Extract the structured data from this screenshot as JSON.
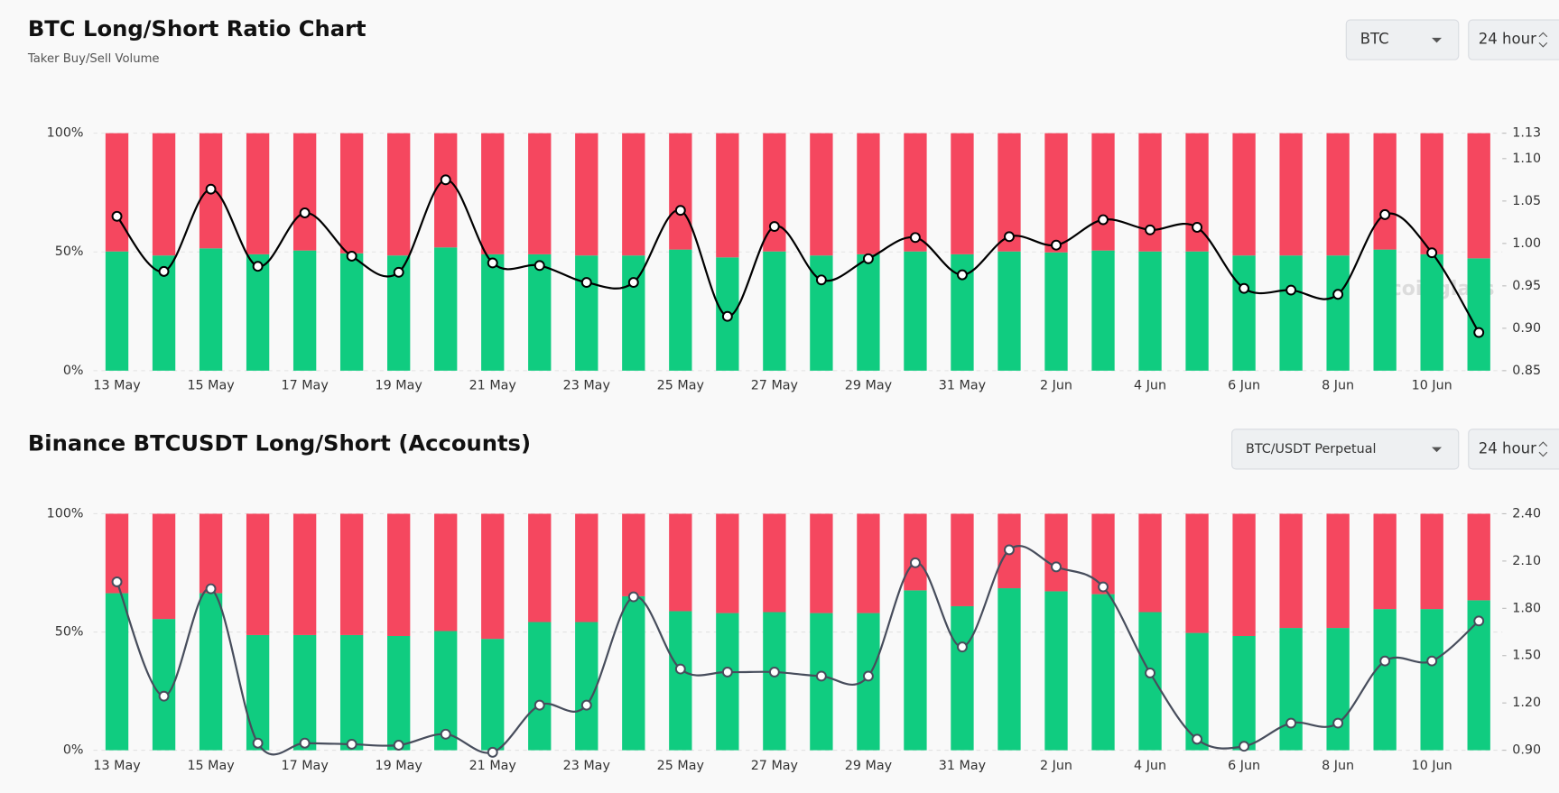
{
  "controls": [
    [
      "BTC",
      "24 hour"
    ],
    [
      "BTC/USDT Perpetual",
      "24 hour"
    ]
  ],
  "chart_data": [
    {
      "type": "bar",
      "stacked": true,
      "title": "BTC Long/Short Ratio Chart",
      "subtitle": "Taker Buy/Sell Volume",
      "watermark": "coinglass",
      "categories": [
        "13 May",
        null,
        "15 May",
        null,
        "17 May",
        null,
        "19 May",
        null,
        "21 May",
        null,
        "23 May",
        null,
        "25 May",
        null,
        "27 May",
        null,
        "29 May",
        null,
        "31 May",
        null,
        "2 Jun",
        null,
        "4 Jun",
        null,
        "6 Jun",
        null,
        "8 Jun",
        null,
        "10 Jun",
        null
      ],
      "series": [
        {
          "color": "#10cc80",
          "values": [
            50.2,
            48.5,
            51.5,
            49,
            50.6,
            49.4,
            48.5,
            51.9,
            49,
            49,
            48.5,
            48.5,
            51,
            47.7,
            50.2,
            48.5,
            49,
            50.2,
            49,
            50.2,
            49.8,
            50.6,
            50.2,
            50.2,
            48.5,
            48.5,
            48.5,
            51,
            49,
            47.3
          ]
        },
        {
          "color": "#f5475f",
          "values": [
            49.8,
            51.5,
            48.5,
            51,
            49.4,
            50.6,
            51.5,
            48.1,
            51,
            51,
            51.5,
            51.5,
            49,
            52.3,
            49.8,
            51.5,
            51,
            49.8,
            51,
            49.8,
            50.2,
            49.4,
            49.8,
            49.8,
            51.5,
            51.5,
            51.5,
            49,
            51,
            52.7
          ]
        },
        {
          "type": "line",
          "axis": "y2",
          "color": "#000000",
          "values": [
            1.032,
            0.967,
            1.064,
            0.973,
            1.036,
            0.985,
            0.966,
            1.075,
            0.977,
            0.974,
            0.954,
            0.954,
            1.039,
            0.914,
            1.02,
            0.957,
            0.982,
            1.007,
            0.963,
            1.008,
            0.998,
            1.028,
            1.016,
            1.019,
            0.947,
            0.945,
            0.94,
            1.034,
            0.989,
            0.895
          ]
        }
      ],
      "ylim": [
        0,
        100
      ],
      "yticks": [
        {
          "value": 0,
          "label": "0%"
        },
        {
          "value": 50,
          "label": "50%"
        },
        {
          "value": 100,
          "label": "100%"
        }
      ],
      "y2lim": [
        0.85,
        1.13
      ],
      "y2ticks": [
        0.85,
        {
          "value": 0.9,
          "label": "0.90"
        },
        0.95,
        {
          "value": 1,
          "label": "1.00"
        },
        1.05,
        {
          "value": 1.1,
          "label": "1.10"
        },
        1.13
      ],
      "grid": true
    },
    {
      "type": "bar",
      "stacked": true,
      "title": "Binance BTCUSDT Long/Short (Accounts)",
      "categories": [
        "13 May",
        null,
        "15 May",
        null,
        "17 May",
        null,
        "19 May",
        null,
        "21 May",
        null,
        "23 May",
        null,
        "25 May",
        null,
        "27 May",
        null,
        "29 May",
        null,
        "31 May",
        null,
        "2 Jun",
        null,
        "4 Jun",
        null,
        "6 Jun",
        null,
        "8 Jun",
        null,
        "10 Jun",
        null
      ],
      "series": [
        {
          "color": "#10cc80",
          "values": [
            66.4,
            55.5,
            66.4,
            48.7,
            48.7,
            48.7,
            48.3,
            50.4,
            47.1,
            54.2,
            54.2,
            65.1,
            58.8,
            58,
            58.4,
            58,
            58,
            67.6,
            60.9,
            68.5,
            67.2,
            66,
            58.4,
            49.6,
            48.3,
            51.7,
            51.7,
            59.7,
            59.7,
            63.4
          ]
        },
        {
          "color": "#f5475f",
          "values": [
            33.6,
            44.5,
            33.6,
            51.3,
            51.3,
            51.3,
            51.7,
            49.6,
            52.9,
            45.8,
            45.8,
            34.9,
            41.2,
            42,
            41.6,
            42,
            42,
            32.4,
            39.1,
            31.5,
            32.8,
            34,
            41.6,
            50.4,
            51.7,
            48.3,
            48.3,
            40.3,
            40.3,
            36.6
          ]
        },
        {
          "type": "line",
          "axis": "y2",
          "color": "#474d5c",
          "values": [
            1.968,
            1.243,
            1.924,
            0.945,
            0.945,
            0.938,
            0.932,
            1.002,
            0.887,
            1.186,
            1.186,
            1.873,
            1.415,
            1.396,
            1.396,
            1.37,
            1.37,
            2.089,
            1.555,
            2.171,
            2.063,
            1.936,
            1.39,
            0.97,
            0.925,
            1.072,
            1.072,
            1.466,
            1.466,
            1.72
          ]
        }
      ],
      "ylim": [
        0,
        100
      ],
      "yticks": [
        {
          "value": 0,
          "label": "0%"
        },
        {
          "value": 50,
          "label": "50%"
        },
        {
          "value": 100,
          "label": "100%"
        }
      ],
      "y2lim": [
        0.9,
        2.4
      ],
      "y2ticks": [
        {
          "value": 0.9,
          "label": "0.90"
        },
        {
          "value": 1.2,
          "label": "1.20"
        },
        {
          "value": 1.5,
          "label": "1.50"
        },
        {
          "value": 1.8,
          "label": "1.80"
        },
        {
          "value": 2.1,
          "label": "2.10"
        },
        {
          "value": 2.4,
          "label": "2.40"
        }
      ],
      "grid": true
    }
  ]
}
